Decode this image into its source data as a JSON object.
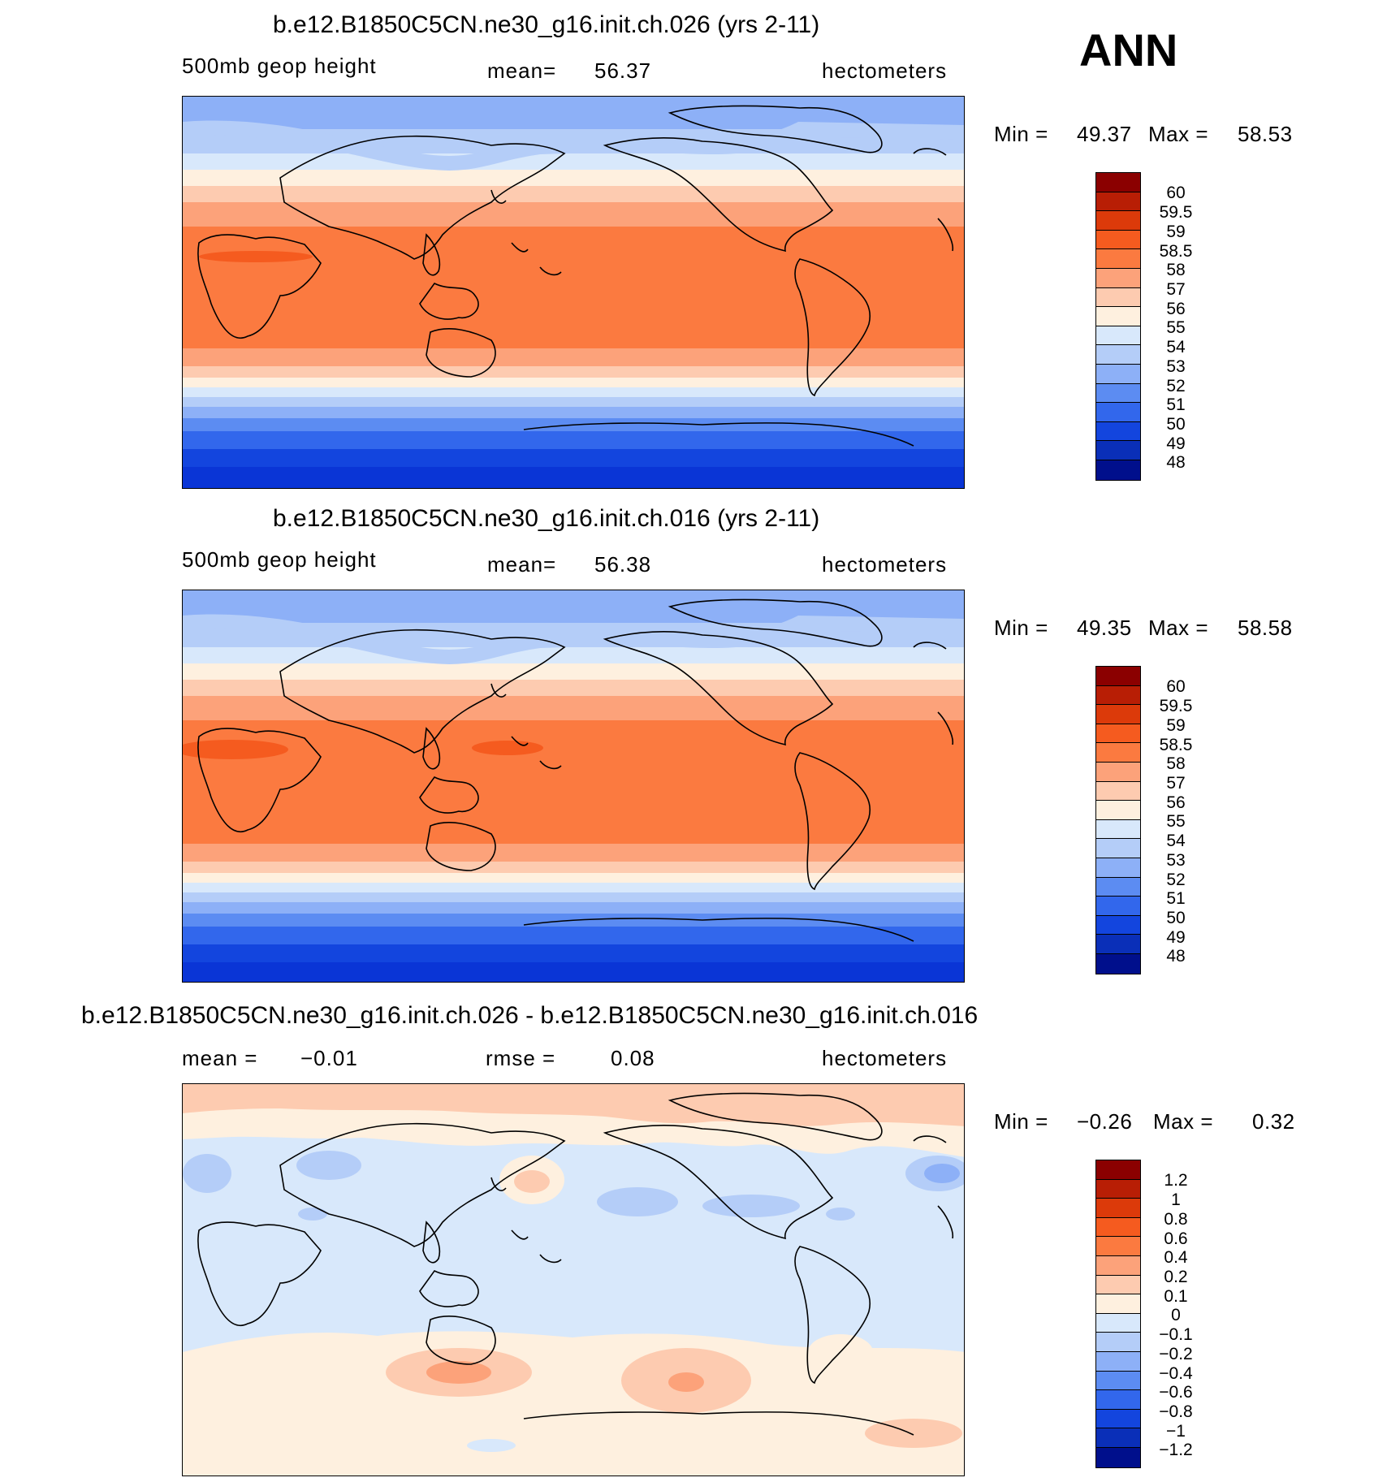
{
  "season": "ANN",
  "units": "hectometers",
  "panels": [
    {
      "id": "top",
      "title": "b.e12.B1850C5CN.ne30_g16.init.ch.026 (yrs 2-11)",
      "variable": "500mb  geop  height",
      "stat_label": "mean=",
      "stat_value": "56.37",
      "units": "hectometers",
      "min_label": "Min  =",
      "min_value": "49.37",
      "max_label": "Max  =",
      "max_value": "58.53",
      "colorbar_labels": [
        "60",
        "59.5",
        "59",
        "58.5",
        "58",
        "57",
        "56",
        "55",
        "54",
        "53",
        "52",
        "51",
        "50",
        "49",
        "48"
      ]
    },
    {
      "id": "middle",
      "title": "b.e12.B1850C5CN.ne30_g16.init.ch.016 (yrs 2-11)",
      "variable": "500mb  geop  height",
      "stat_label": "mean=",
      "stat_value": "56.38",
      "units": "hectometers",
      "min_label": "Min  =",
      "min_value": "49.35",
      "max_label": "Max  =",
      "max_value": "58.58",
      "colorbar_labels": [
        "60",
        "59.5",
        "59",
        "58.5",
        "58",
        "57",
        "56",
        "55",
        "54",
        "53",
        "52",
        "51",
        "50",
        "49",
        "48"
      ]
    },
    {
      "id": "difference",
      "title": "b.e12.B1850C5CN.ne30_g16.init.ch.026 - b.e12.B1850C5CN.ne30_g16.init.ch.016",
      "mean_label": "mean  =",
      "mean_value": "−0.01",
      "rmse_label": "rmse  =",
      "rmse_value": "0.08",
      "units": "hectometers",
      "min_label": "Min  =",
      "min_value": "−0.26",
      "max_label": "Max  =",
      "max_value": "0.32",
      "colorbar_labels": [
        "1.2",
        "1",
        "0.8",
        "0.6",
        "0.4",
        "0.2",
        "0.1",
        "0",
        "−0.1",
        "−0.2",
        "−0.4",
        "−0.6",
        "−0.8",
        "−1",
        "−1.2"
      ]
    }
  ],
  "colorbar_colors": [
    "#8b0000",
    "#b81e05",
    "#dc3a0a",
    "#f55b1f",
    "#fb7a40",
    "#fca27a",
    "#fdcbb0",
    "#fef0df",
    "#d8e8fb",
    "#b4cdf8",
    "#8db0f7",
    "#5c8cf2",
    "#3267ec",
    "#1345de",
    "#0a2fb8",
    "#000f8c"
  ],
  "map_colors": {
    "field_levels": [
      "#0a35d6",
      "#1345de",
      "#3267ec",
      "#5c8cf2",
      "#8db0f7",
      "#b4cdf8",
      "#d8e8fb",
      "#fef0df",
      "#fdcbb0",
      "#fca27a",
      "#fb7a40",
      "#f55b1f"
    ],
    "diff_background": "#d8e8fb",
    "diff_positive_light": "#fef0df",
    "diff_positive": "#fdcbb0",
    "diff_positive_strong": "#fca27a",
    "diff_negative": "#b4cdf8",
    "diff_negative_strong": "#8db0f7"
  }
}
